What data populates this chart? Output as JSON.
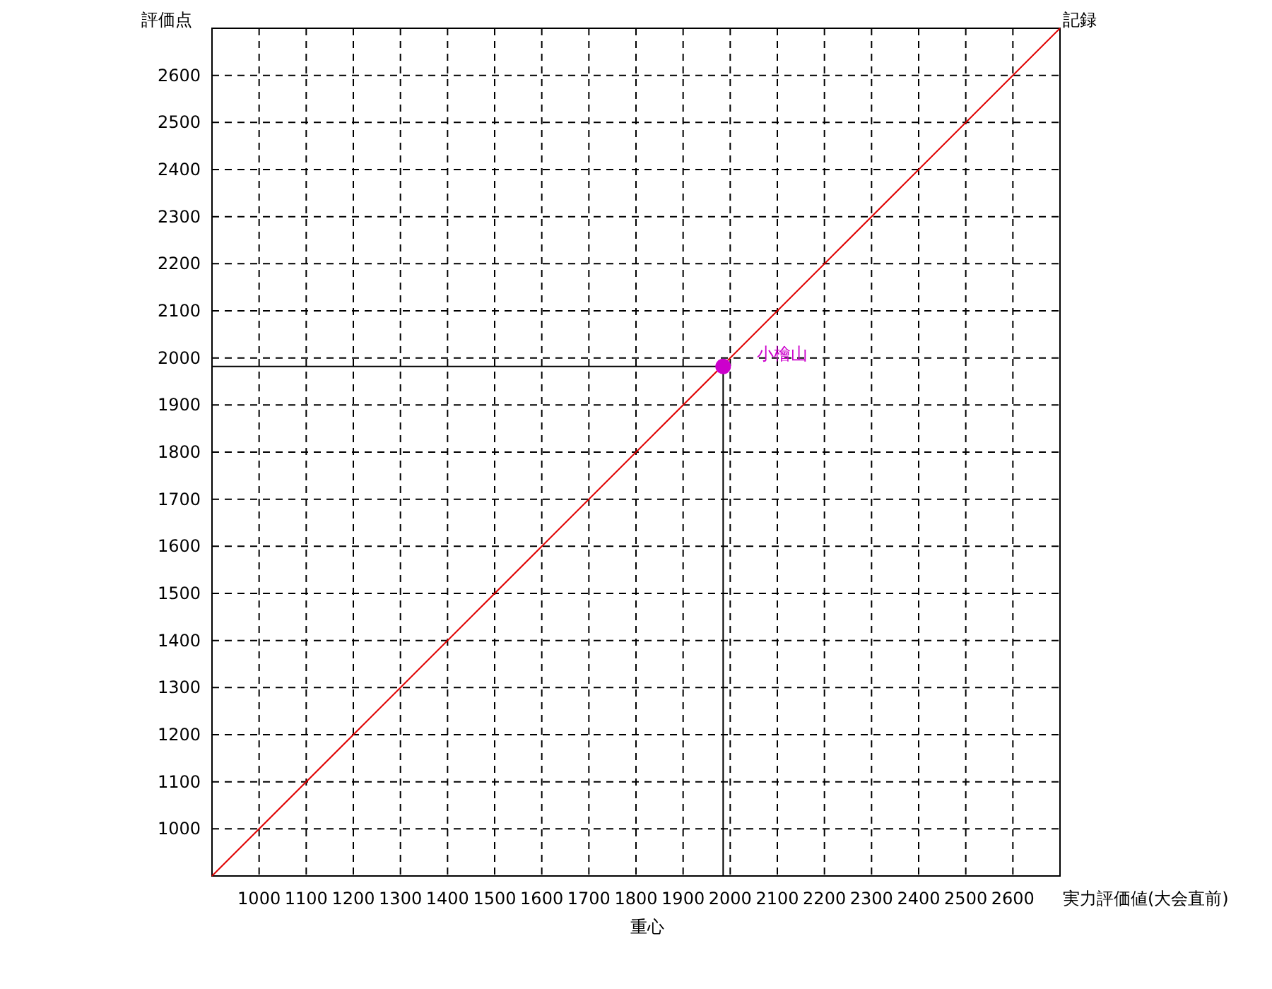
{
  "chart_data": {
    "type": "scatter",
    "xlabel": "実力評価値(大会直前)",
    "ylabel": "評価点",
    "xlim": [
      900,
      2700
    ],
    "ylim": [
      900,
      2700
    ],
    "xticks": [
      1000,
      1100,
      1200,
      1300,
      1400,
      1500,
      1600,
      1700,
      1800,
      1900,
      2000,
      2100,
      2200,
      2300,
      2400,
      2500,
      2600
    ],
    "yticks": [
      1000,
      1100,
      1200,
      1300,
      1400,
      1500,
      1600,
      1700,
      1800,
      1900,
      2000,
      2100,
      2200,
      2300,
      2400,
      2500,
      2600
    ],
    "grid": true,
    "line_style": "solid",
    "series": [
      {
        "type": "line",
        "color": "#e00000",
        "x": [
          900,
          2700
        ],
        "values": [
          900,
          2700
        ]
      },
      {
        "type": "line",
        "color": "#000000",
        "x": [
          900,
          1985
        ],
        "values": [
          1982,
          1982
        ]
      },
      {
        "type": "line",
        "color": "#000000",
        "x": [
          1985,
          1985
        ],
        "values": [
          900,
          1982
        ]
      },
      {
        "type": "scatter",
        "color": "#cc00cc",
        "marker": "circle",
        "x": [
          1985
        ],
        "values": [
          1982
        ]
      }
    ],
    "annotations": [
      {
        "text": "小檜山",
        "x": 1985,
        "y": 1982
      },
      "記録",
      "重心"
    ]
  }
}
